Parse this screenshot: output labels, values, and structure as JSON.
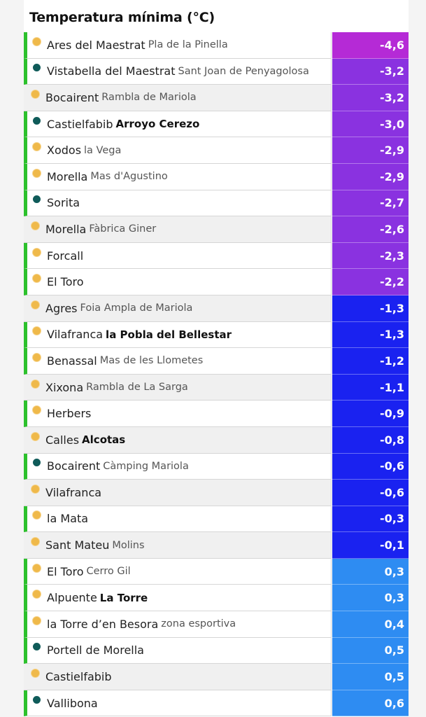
{
  "title": "Temperatura mínima (°C)",
  "colors": {
    "accent_bar": "#2cc12c",
    "dot_yellow": "#efb94a",
    "dot_teal": "#0f5b59",
    "magenta": "#b52ad6",
    "purple": "#8a32e0",
    "violet": "#7a32ea",
    "blue_dark": "#1a22f0",
    "blue_mid": "#2a6cf0",
    "blue_light": "#2e8cf2"
  },
  "rows": [
    {
      "town": "Ares del Maestrat",
      "sub": "Pla de la Pinella",
      "sub_bold": false,
      "value": "-4,6",
      "dot": "yellow",
      "bar": true,
      "shade": "white",
      "color": "#b52ad6"
    },
    {
      "town": "Vistabella del Maestrat",
      "sub": "Sant Joan de Penyagolosa",
      "sub_bold": false,
      "value": "-3,2",
      "dot": "teal",
      "bar": true,
      "shade": "white",
      "color": "#8a32e0"
    },
    {
      "town": "Bocairent",
      "sub": "Rambla de Mariola",
      "sub_bold": false,
      "value": "-3,2",
      "dot": "yellow",
      "bar": false,
      "shade": "gray",
      "color": "#8a32e0"
    },
    {
      "town": "Castielfabib",
      "sub": "Arroyo Cerezo",
      "sub_bold": true,
      "value": "-3,0",
      "dot": "teal",
      "bar": true,
      "shade": "white",
      "color": "#8a32e0"
    },
    {
      "town": "Xodos",
      "sub": "la Vega",
      "sub_bold": false,
      "value": "-2,9",
      "dot": "yellow",
      "bar": true,
      "shade": "white",
      "color": "#8a32e0"
    },
    {
      "town": "Morella",
      "sub": "Mas d'Agustino",
      "sub_bold": false,
      "value": "-2,9",
      "dot": "yellow",
      "bar": true,
      "shade": "white",
      "color": "#8a32e0"
    },
    {
      "town": "Sorita",
      "sub": "",
      "sub_bold": false,
      "value": "-2,7",
      "dot": "teal",
      "bar": true,
      "shade": "white",
      "color": "#8a32e0"
    },
    {
      "town": "Morella",
      "sub": "Fàbrica Giner",
      "sub_bold": false,
      "value": "-2,6",
      "dot": "yellow",
      "bar": false,
      "shade": "gray",
      "color": "#8a32e0"
    },
    {
      "town": "Forcall",
      "sub": "",
      "sub_bold": false,
      "value": "-2,3",
      "dot": "yellow",
      "bar": true,
      "shade": "white",
      "color": "#8a32e0"
    },
    {
      "town": "El Toro",
      "sub": "",
      "sub_bold": false,
      "value": "-2,2",
      "dot": "yellow",
      "bar": true,
      "shade": "white",
      "color": "#8a32e0"
    },
    {
      "town": "Agres",
      "sub": "Foia Ampla de Mariola",
      "sub_bold": false,
      "value": "-1,3",
      "dot": "yellow",
      "bar": false,
      "shade": "gray",
      "color": "#1a22f0"
    },
    {
      "town": "Vilafranca",
      "sub": "la Pobla del Bellestar",
      "sub_bold": true,
      "value": "-1,3",
      "dot": "yellow",
      "bar": true,
      "shade": "white",
      "color": "#1a22f0"
    },
    {
      "town": "Benassal",
      "sub": "Mas de les Llometes",
      "sub_bold": false,
      "value": "-1,2",
      "dot": "yellow",
      "bar": true,
      "shade": "white",
      "color": "#1a22f0"
    },
    {
      "town": "Xixona",
      "sub": "Rambla de La Sarga",
      "sub_bold": false,
      "value": "-1,1",
      "dot": "yellow",
      "bar": false,
      "shade": "gray",
      "color": "#1a22f0"
    },
    {
      "town": "Herbers",
      "sub": "",
      "sub_bold": false,
      "value": "-0,9",
      "dot": "yellow",
      "bar": true,
      "shade": "white",
      "color": "#1a22f0"
    },
    {
      "town": "Calles",
      "sub": "Alcotas",
      "sub_bold": true,
      "value": "-0,8",
      "dot": "yellow",
      "bar": false,
      "shade": "gray",
      "color": "#1a22f0"
    },
    {
      "town": "Bocairent",
      "sub": "Càmping Mariola",
      "sub_bold": false,
      "value": "-0,6",
      "dot": "teal",
      "bar": true,
      "shade": "white",
      "color": "#1a22f0"
    },
    {
      "town": "Vilafranca",
      "sub": "",
      "sub_bold": false,
      "value": "-0,6",
      "dot": "yellow",
      "bar": false,
      "shade": "gray",
      "color": "#1a22f0"
    },
    {
      "town": "la Mata",
      "sub": "",
      "sub_bold": false,
      "value": "-0,3",
      "dot": "yellow",
      "bar": true,
      "shade": "white",
      "color": "#1a22f0"
    },
    {
      "town": "Sant Mateu",
      "sub": "Molins",
      "sub_bold": false,
      "value": "-0,1",
      "dot": "yellow",
      "bar": false,
      "shade": "gray",
      "color": "#1a22f0"
    },
    {
      "town": "El Toro",
      "sub": "Cerro Gil",
      "sub_bold": false,
      "value": "0,3",
      "dot": "yellow",
      "bar": true,
      "shade": "white",
      "color": "#2e8cf2"
    },
    {
      "town": "Alpuente",
      "sub": "La Torre",
      "sub_bold": true,
      "value": "0,3",
      "dot": "yellow",
      "bar": true,
      "shade": "white",
      "color": "#2e8cf2"
    },
    {
      "town": "la Torre d’en Besora",
      "sub": "zona esportiva",
      "sub_bold": false,
      "value": "0,4",
      "dot": "yellow",
      "bar": true,
      "shade": "white",
      "color": "#2e8cf2"
    },
    {
      "town": "Portell de Morella",
      "sub": "",
      "sub_bold": false,
      "value": "0,5",
      "dot": "teal",
      "bar": true,
      "shade": "white",
      "color": "#2e8cf2"
    },
    {
      "town": "Castielfabib",
      "sub": "",
      "sub_bold": false,
      "value": "0,5",
      "dot": "yellow",
      "bar": false,
      "shade": "gray",
      "color": "#2e8cf2"
    },
    {
      "town": "Vallibona",
      "sub": "",
      "sub_bold": false,
      "value": "0,6",
      "dot": "teal",
      "bar": true,
      "shade": "white",
      "color": "#2e8cf2"
    }
  ]
}
